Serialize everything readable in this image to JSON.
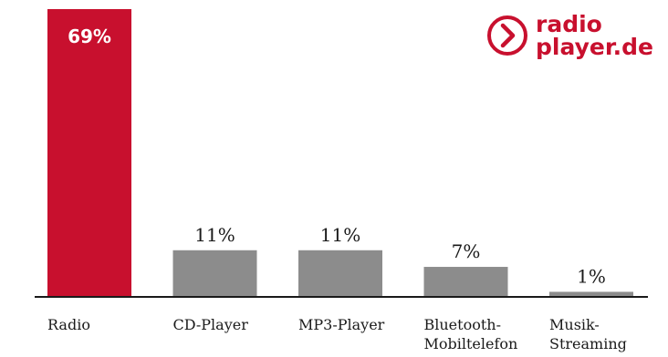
{
  "logo": {
    "line1": "radio",
    "line2": "player.de",
    "icon": "chevron-right-circle-icon",
    "color": "#c8102e"
  },
  "chart_data": {
    "type": "bar",
    "categories": [
      [
        "Radio"
      ],
      [
        "CD-Player"
      ],
      [
        "MP3-Player"
      ],
      [
        "Bluetooth-",
        "Mobiltelefon"
      ],
      [
        "Musik-",
        "Streaming"
      ]
    ],
    "values": [
      69,
      11,
      11,
      7,
      1
    ],
    "value_labels": [
      "69%",
      "11%",
      "11%",
      "7%",
      "1%"
    ],
    "colors": [
      "#c8102e",
      "#8c8c8c",
      "#8c8c8c",
      "#8c8c8c",
      "#8c8c8c"
    ],
    "ylim": [
      0,
      69
    ],
    "grid": false,
    "legend": "none"
  }
}
